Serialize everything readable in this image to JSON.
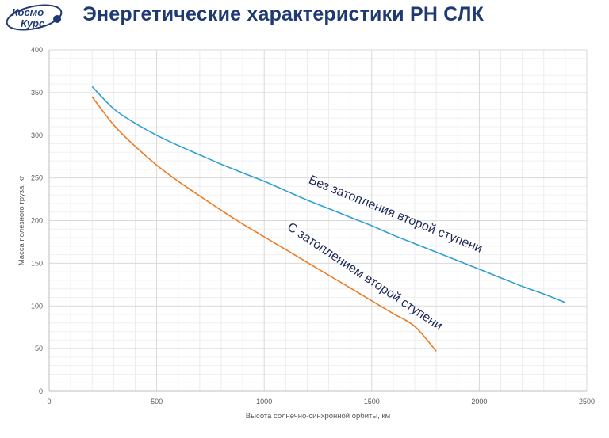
{
  "header": {
    "title": "Энергетические характеристики РН СЛК",
    "logo_line1": "Космо",
    "logo_line2": "Курс"
  },
  "colors": {
    "title": "#1f3a72",
    "series_without": "#2e9fd4",
    "series_with": "#ee7a22",
    "grid": "#d9d9d9"
  },
  "chart_data": {
    "type": "line",
    "title": "",
    "xlabel": "Высота солнечно-синхронной орбиты, км",
    "ylabel": "Масса полезного груза, кг",
    "xlim": [
      0,
      2500
    ],
    "ylim": [
      0,
      400
    ],
    "x_ticks": [
      0,
      500,
      1000,
      1500,
      2000,
      2500
    ],
    "y_ticks": [
      0,
      50,
      100,
      150,
      200,
      250,
      300,
      350,
      400
    ],
    "grid": true,
    "series": [
      {
        "name": "Без затопления второй ступени",
        "color": "#2e9fd4",
        "x": [
          200,
          300,
          400,
          500,
          600,
          700,
          800,
          900,
          1000,
          1100,
          1200,
          1300,
          1400,
          1500,
          1600,
          1700,
          1800,
          1900,
          2000,
          2100,
          2200,
          2300,
          2400
        ],
        "y": [
          357,
          331,
          314,
          300,
          288,
          277,
          266,
          256,
          246,
          235,
          224,
          214,
          204,
          194,
          183,
          173,
          163,
          153,
          143,
          133,
          123,
          114,
          104
        ]
      },
      {
        "name": "С затоплением второй ступени",
        "color": "#ee7a22",
        "x": [
          200,
          300,
          400,
          500,
          600,
          700,
          800,
          900,
          1000,
          1100,
          1200,
          1300,
          1400,
          1500,
          1600,
          1700,
          1800
        ],
        "y": [
          345,
          312,
          287,
          265,
          246,
          229,
          212,
          196,
          181,
          166,
          151,
          136,
          121,
          106,
          91,
          76,
          47
        ]
      }
    ],
    "annotations": [
      {
        "text": "Без затопления второй ступени",
        "series": 0
      },
      {
        "text": "С затоплением второй ступени",
        "series": 1
      }
    ]
  }
}
